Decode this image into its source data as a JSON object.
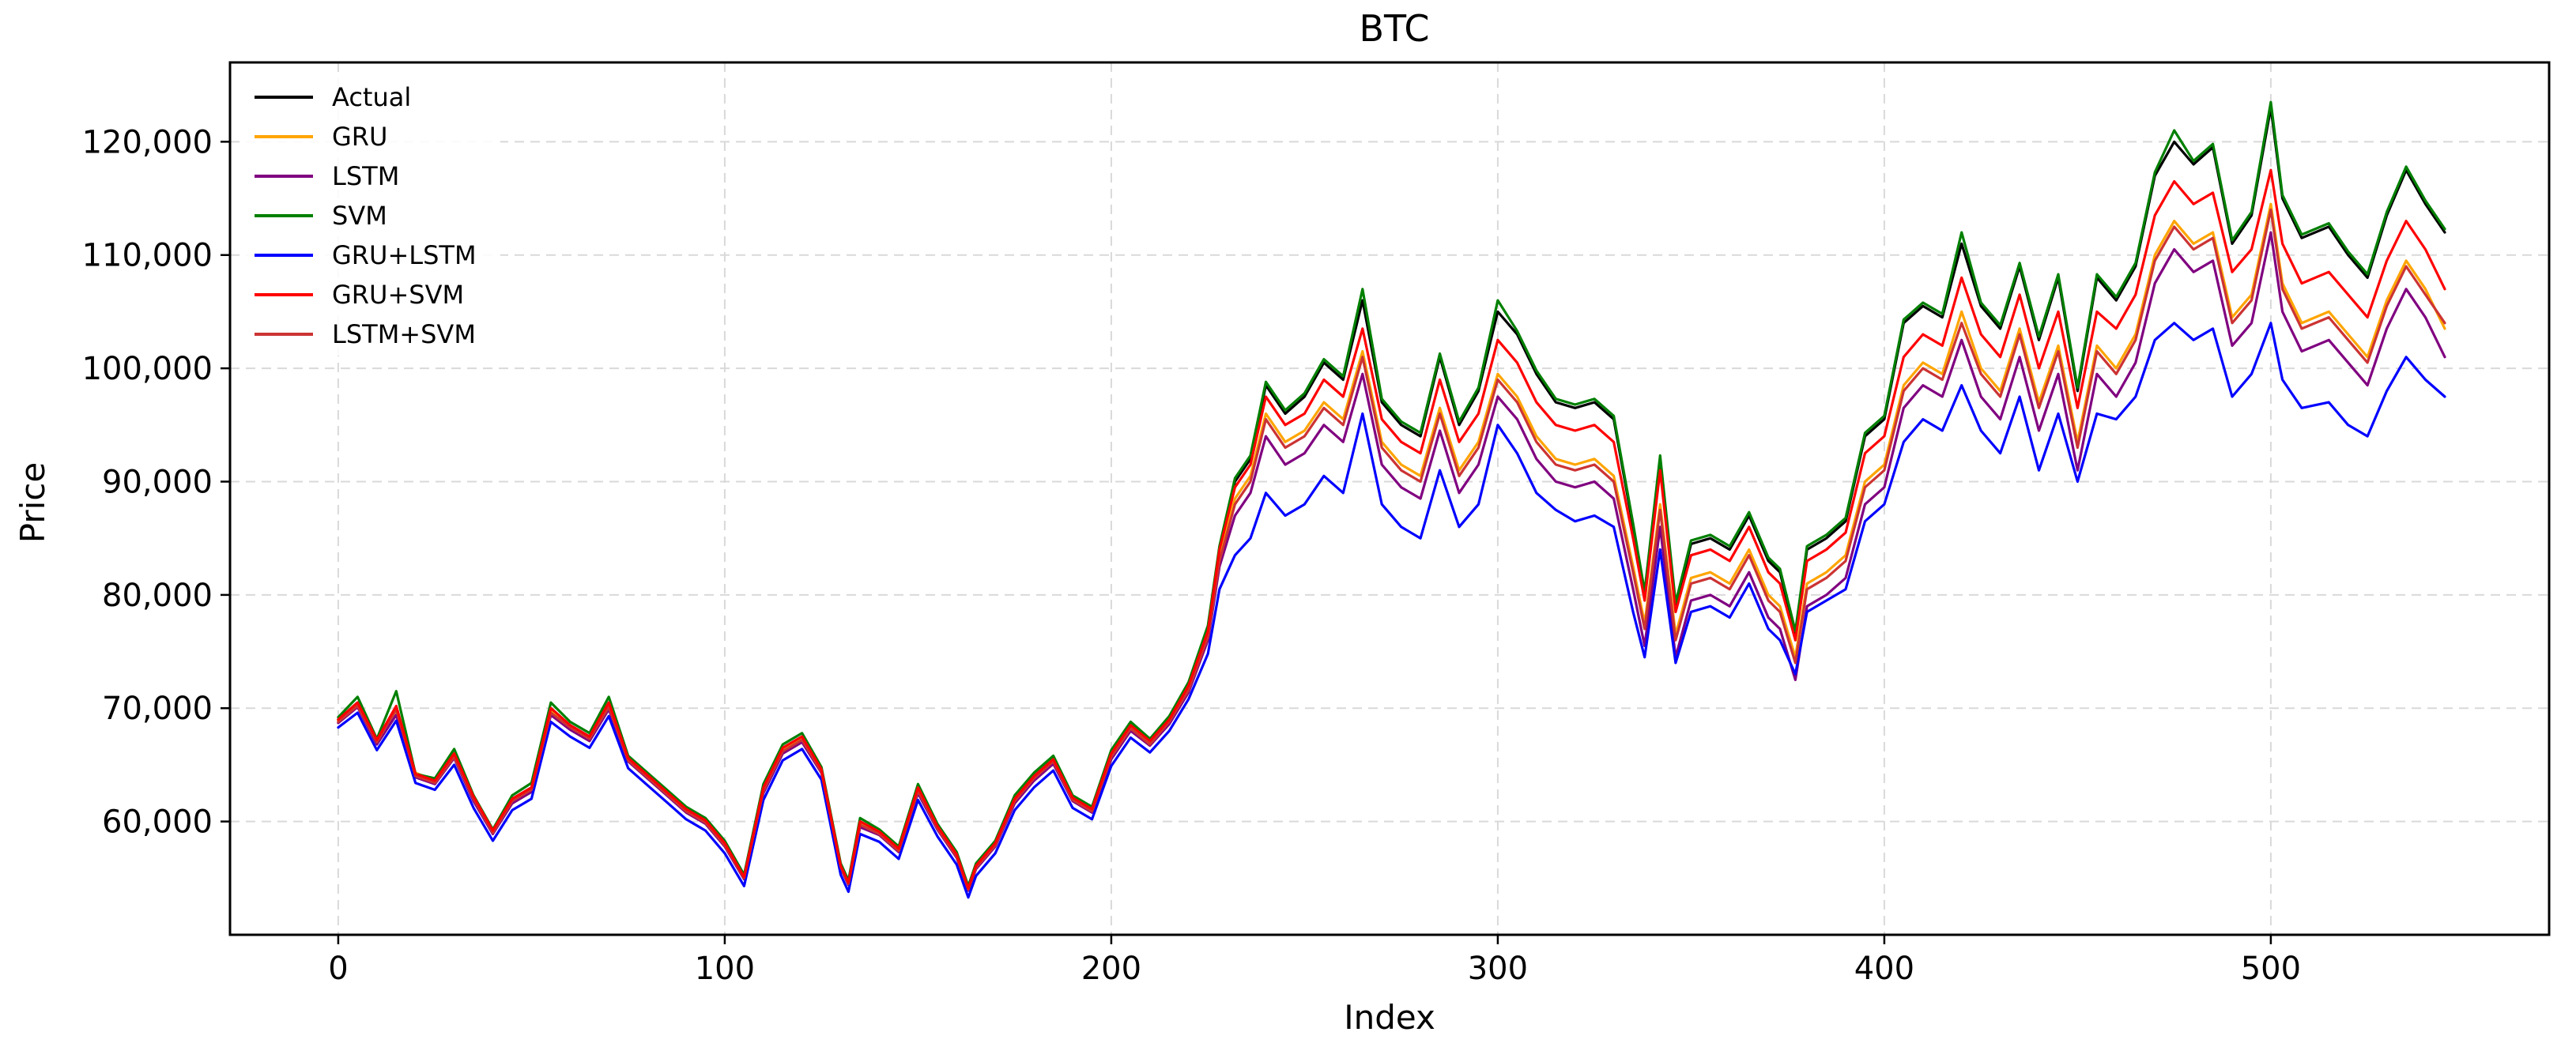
{
  "chart_data": {
    "type": "line",
    "title": "BTC",
    "xlabel": "Index",
    "ylabel": "Price",
    "xlim": [
      -28,
      572
    ],
    "ylim": [
      50000,
      127000
    ],
    "xticks": [
      0,
      100,
      200,
      300,
      400,
      500
    ],
    "yticks": [
      60000,
      70000,
      80000,
      90000,
      100000,
      110000,
      120000
    ],
    "ytick_labels": [
      "60,000",
      "70,000",
      "80,000",
      "90,000",
      "100,000",
      "110,000",
      "120,000"
    ],
    "grid": true,
    "legend_position": "top-left",
    "x": [
      0,
      5,
      10,
      15,
      20,
      25,
      30,
      35,
      40,
      45,
      50,
      55,
      60,
      65,
      70,
      75,
      80,
      85,
      90,
      95,
      100,
      105,
      110,
      115,
      120,
      125,
      130,
      132,
      135,
      140,
      145,
      150,
      155,
      160,
      163,
      165,
      170,
      175,
      180,
      185,
      190,
      195,
      200,
      205,
      210,
      215,
      220,
      225,
      228,
      232,
      236,
      240,
      245,
      250,
      255,
      260,
      265,
      270,
      275,
      280,
      285,
      290,
      295,
      300,
      305,
      310,
      315,
      320,
      325,
      330,
      335,
      338,
      342,
      346,
      350,
      355,
      360,
      365,
      370,
      373,
      377,
      380,
      385,
      390,
      395,
      400,
      405,
      410,
      415,
      420,
      425,
      430,
      435,
      440,
      445,
      450,
      455,
      460,
      465,
      470,
      475,
      480,
      485,
      490,
      495,
      500,
      503,
      508,
      515,
      520,
      525,
      530,
      535,
      540,
      545
    ],
    "series": [
      {
        "name": "Actual",
        "color": "#000000",
        "values": [
          69000,
          70500,
          67000,
          70000,
          64000,
          63500,
          66000,
          62000,
          59000,
          62000,
          63000,
          70000,
          68500,
          67500,
          70500,
          65500,
          64000,
          62500,
          61000,
          60000,
          58000,
          55000,
          63000,
          66500,
          67500,
          64500,
          56000,
          54500,
          60000,
          59000,
          57500,
          63000,
          59500,
          57000,
          54000,
          56000,
          58000,
          62000,
          64000,
          65500,
          62000,
          61000,
          66000,
          68500,
          67000,
          69000,
          72000,
          77000,
          84000,
          90000,
          92000,
          98500,
          96000,
          97500,
          100500,
          99000,
          106000,
          97000,
          95000,
          94000,
          101000,
          95000,
          98000,
          105000,
          103000,
          99500,
          97000,
          96500,
          97000,
          95500,
          86000,
          80000,
          92000,
          79000,
          84500,
          85000,
          84000,
          87000,
          83000,
          82000,
          76500,
          84000,
          85000,
          86500,
          94000,
          95500,
          104000,
          105500,
          104500,
          111000,
          105500,
          103500,
          109000,
          102500,
          108000,
          98000,
          108000,
          106000,
          109000,
          117000,
          120000,
          118000,
          119500,
          111000,
          113500,
          123000,
          115000,
          111500,
          112500,
          110000,
          108000,
          113500,
          117500,
          114500,
          112000
        ]
      },
      {
        "name": "GRU",
        "color": "#ffa500",
        "values": [
          68900,
          70300,
          67200,
          69700,
          64300,
          63600,
          65800,
          62200,
          59300,
          61900,
          62900,
          69700,
          68400,
          67400,
          70200,
          65600,
          64100,
          62600,
          61100,
          60100,
          58100,
          55200,
          62800,
          66300,
          67300,
          64600,
          56200,
          54700,
          59800,
          59100,
          57600,
          62800,
          59600,
          57100,
          54200,
          56100,
          58100,
          61900,
          63900,
          65400,
          62100,
          61100,
          65800,
          68300,
          67000,
          68900,
          71700,
          76500,
          83500,
          88500,
          90500,
          96000,
          93500,
          94500,
          97000,
          95500,
          101500,
          93500,
          91500,
          90500,
          96500,
          91000,
          93500,
          99500,
          97500,
          94000,
          92000,
          91500,
          92000,
          90500,
          82500,
          77500,
          88000,
          76500,
          81500,
          82000,
          81000,
          84000,
          80000,
          79000,
          74500,
          81000,
          82000,
          83500,
          90000,
          91500,
          98500,
          100500,
          99500,
          105000,
          100000,
          98000,
          103500,
          97000,
          102000,
          93500,
          102000,
          100000,
          103000,
          110000,
          113000,
          111000,
          112000,
          104500,
          106500,
          114500,
          107500,
          104000,
          105000,
          103000,
          101000,
          106000,
          109500,
          107000,
          103500
        ]
      },
      {
        "name": "LSTM",
        "color": "#800080",
        "values": [
          68700,
          70100,
          66800,
          69400,
          63900,
          63300,
          65600,
          61800,
          58900,
          61600,
          62600,
          69400,
          68100,
          67100,
          69900,
          65300,
          63800,
          62300,
          60800,
          59800,
          57800,
          54900,
          62500,
          66000,
          67000,
          64300,
          55900,
          54400,
          59500,
          58800,
          57300,
          62500,
          59300,
          56800,
          53900,
          55800,
          57800,
          61600,
          63600,
          65100,
          61800,
          60800,
          65500,
          68000,
          66700,
          68600,
          71400,
          76000,
          82500,
          87000,
          89000,
          94000,
          91500,
          92500,
          95000,
          93500,
          99500,
          91500,
          89500,
          88500,
          94500,
          89000,
          91500,
          97500,
          95500,
          92000,
          90000,
          89500,
          90000,
          88500,
          80500,
          75500,
          86000,
          74500,
          79500,
          80000,
          79000,
          82000,
          78000,
          77000,
          72500,
          79000,
          80000,
          81500,
          88000,
          89500,
          96500,
          98500,
          97500,
          102500,
          97500,
          95500,
          101000,
          94500,
          99500,
          91000,
          99500,
          97500,
          100500,
          107500,
          110500,
          108500,
          109500,
          102000,
          104000,
          112000,
          105000,
          101500,
          102500,
          100500,
          98500,
          103500,
          107000,
          104500,
          101000
        ]
      },
      {
        "name": "SVM",
        "color": "#008000",
        "values": [
          69200,
          71000,
          67300,
          71500,
          64200,
          63800,
          66400,
          62300,
          59300,
          62300,
          63400,
          70500,
          68800,
          67800,
          71000,
          65800,
          64300,
          62800,
          61300,
          60300,
          58300,
          55300,
          63300,
          66800,
          67800,
          64800,
          56300,
          54800,
          60300,
          59300,
          57800,
          63300,
          59800,
          57300,
          54300,
          56300,
          58300,
          62300,
          64300,
          65800,
          62300,
          61300,
          66300,
          68800,
          67300,
          69300,
          72300,
          77300,
          84300,
          90300,
          92300,
          98800,
          96300,
          97800,
          100800,
          99300,
          107000,
          97300,
          95300,
          94300,
          101300,
          95300,
          98300,
          106000,
          103300,
          99800,
          97300,
          96800,
          97300,
          95800,
          86300,
          80300,
          92300,
          79300,
          84800,
          85300,
          84300,
          87300,
          83300,
          82300,
          76800,
          84300,
          85300,
          86800,
          94300,
          95800,
          104300,
          105800,
          104800,
          112000,
          105800,
          103800,
          109300,
          102800,
          108300,
          98300,
          108300,
          106300,
          109300,
          117300,
          121000,
          118300,
          119800,
          111300,
          113800,
          123500,
          115300,
          111800,
          112800,
          110300,
          108300,
          113800,
          117800,
          114800,
          112300
        ]
      },
      {
        "name": "GRU+LSTM",
        "color": "#0000ff",
        "values": [
          68300,
          69600,
          66300,
          68900,
          63400,
          62800,
          65000,
          61200,
          58300,
          61000,
          62000,
          68800,
          67500,
          66500,
          69300,
          64700,
          63200,
          61700,
          60200,
          59200,
          57200,
          54300,
          61900,
          65400,
          66400,
          63700,
          55300,
          53800,
          58900,
          58200,
          56700,
          61900,
          58700,
          56200,
          53300,
          55200,
          57200,
          61000,
          63000,
          64500,
          61200,
          60200,
          64900,
          67400,
          66100,
          68000,
          70800,
          74800,
          80500,
          83500,
          85000,
          89000,
          87000,
          88000,
          90500,
          89000,
          96000,
          88000,
          86000,
          85000,
          91000,
          86000,
          88000,
          95000,
          92500,
          89000,
          87500,
          86500,
          87000,
          86000,
          78500,
          74500,
          84000,
          74000,
          78500,
          79000,
          78000,
          81000,
          77000,
          76000,
          73000,
          78500,
          79500,
          80500,
          86500,
          88000,
          93500,
          95500,
          94500,
          98500,
          94500,
          92500,
          97500,
          91000,
          96000,
          90000,
          96000,
          95500,
          97500,
          102500,
          104000,
          102500,
          103500,
          97500,
          99500,
          104000,
          99000,
          96500,
          97000,
          95000,
          94000,
          98000,
          101000,
          99000,
          97500
        ]
      },
      {
        "name": "GRU+SVM",
        "color": "#ff0000",
        "values": [
          69000,
          70500,
          67200,
          70200,
          64200,
          63600,
          66000,
          62200,
          59200,
          62000,
          63000,
          70000,
          68500,
          67500,
          70500,
          65600,
          64100,
          62600,
          61100,
          60100,
          58100,
          55100,
          63000,
          66500,
          67500,
          64600,
          56100,
          54600,
          60000,
          59100,
          57600,
          63000,
          59600,
          57100,
          54100,
          56100,
          58100,
          62000,
          64000,
          65500,
          62100,
          61100,
          66000,
          68500,
          67100,
          69000,
          72000,
          76800,
          84000,
          89500,
          91500,
          97500,
          95000,
          96000,
          99000,
          97500,
          103500,
          95500,
          93500,
          92500,
          99000,
          93500,
          96000,
          102500,
          100500,
          97000,
          95000,
          94500,
          95000,
          93500,
          85000,
          79500,
          91000,
          78500,
          83500,
          84000,
          83000,
          86000,
          82000,
          81000,
          76000,
          83000,
          84000,
          85500,
          92500,
          94000,
          101000,
          103000,
          102000,
          108000,
          103000,
          101000,
          106500,
          100000,
          105000,
          96500,
          105000,
          103500,
          106500,
          113500,
          116500,
          114500,
          115500,
          108500,
          110500,
          117500,
          111000,
          107500,
          108500,
          106500,
          104500,
          109500,
          113000,
          110500,
          107000
        ]
      },
      {
        "name": "LSTM+SVM",
        "color": "#cc3333",
        "values": [
          68800,
          70200,
          67000,
          69900,
          64000,
          63400,
          65700,
          62000,
          59000,
          61800,
          62800,
          69600,
          68300,
          67300,
          70100,
          65400,
          63900,
          62400,
          60900,
          59900,
          57900,
          55000,
          62700,
          66200,
          67200,
          64400,
          56000,
          54500,
          59700,
          58900,
          57400,
          62700,
          59400,
          56900,
          54000,
          55900,
          57900,
          61800,
          63800,
          65300,
          61900,
          60900,
          65700,
          68200,
          66800,
          68800,
          71600,
          76300,
          83000,
          88000,
          90000,
          95500,
          93000,
          94000,
          96500,
          95000,
          101000,
          93000,
          91000,
          90000,
          96000,
          90500,
          93000,
          99000,
          97000,
          93500,
          91500,
          91000,
          91500,
          90000,
          82000,
          77000,
          87500,
          76000,
          81000,
          81500,
          80500,
          83500,
          79500,
          78500,
          74000,
          80500,
          81500,
          83000,
          89500,
          91000,
          98000,
          100000,
          99000,
          104000,
          99500,
          97500,
          103000,
          96500,
          101500,
          93000,
          101500,
          99500,
          102500,
          109500,
          112500,
          110500,
          111500,
          104000,
          106000,
          114000,
          107000,
          103500,
          104500,
          102500,
          100500,
          105500,
          109000,
          106500,
          104000
        ]
      }
    ]
  }
}
